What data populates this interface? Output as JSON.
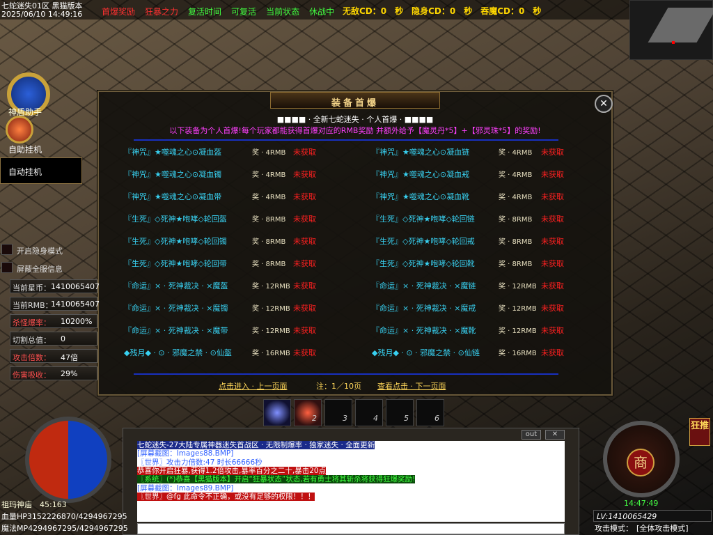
{
  "header": {
    "title": "七蛇迷失01区 黑猫版本",
    "datetime": "2025/06/10 14:49:16",
    "menu": [
      "首爆奖励",
      "狂暴之力",
      "复活时间",
      "可复活",
      "当前状态",
      "休战中"
    ],
    "cooldowns": [
      "无敌CD：0　秒",
      "隐身CD：0　秒",
      "吞魔CD：0　秒"
    ]
  },
  "left_panel": {
    "assistant": "神盾助手",
    "auto_label": "自助挂机",
    "auto_box": "自动挂机",
    "options": [
      "开启隐身模式",
      "屏蔽全服信息"
    ],
    "stats": [
      [
        "当前星币：",
        "1410065407"
      ],
      [
        "当前RMB：",
        "1410065407"
      ],
      [
        "杀怪爆率：",
        "10200%"
      ],
      [
        "切割总值：",
        "0"
      ],
      [
        "攻击倍数：",
        "47倍"
      ],
      [
        "伤害吸收：",
        "29%"
      ]
    ]
  },
  "dialog": {
    "title": "装备首爆",
    "subtitle": "■■■■ · 全新七蛇迷失 · 个人首爆 · ■■■■",
    "description": "以下装备为个人首爆!每个玩家都能获得首爆对应的RMB奖励 并额外给予【魔灵丹*5】+【邪灵珠*5】的奖励!",
    "rows": [
      {
        "left": {
          "name": "『神咒』★噬魂之心⊙凝血盔",
          "reward": "奖 · 4RMB",
          "status": "未获取"
        },
        "right": {
          "name": "『神咒』★噬魂之心⊙凝血链",
          "reward": "奖 · 4RMB",
          "status": "未获取"
        }
      },
      {
        "left": {
          "name": "『神咒』★噬魂之心⊙凝血镯",
          "reward": "奖 · 4RMB",
          "status": "未获取"
        },
        "right": {
          "name": "『神咒』★噬魂之心⊙凝血戒",
          "reward": "奖 · 4RMB",
          "status": "未获取"
        }
      },
      {
        "left": {
          "name": "『神咒』★噬魂之心⊙凝血带",
          "reward": "奖 · 4RMB",
          "status": "未获取"
        },
        "right": {
          "name": "『神咒』★噬魂之心⊙凝血靴",
          "reward": "奖 · 4RMB",
          "status": "未获取"
        }
      },
      {
        "left": {
          "name": "『生死』◇死神★咆哮◇轮回盔",
          "reward": "奖 · 8RMB",
          "status": "未获取"
        },
        "right": {
          "name": "『生死』◇死神★咆哮◇轮回链",
          "reward": "奖 · 8RMB",
          "status": "未获取"
        }
      },
      {
        "left": {
          "name": "『生死』◇死神★咆哮◇轮回镯",
          "reward": "奖 · 8RMB",
          "status": "未获取"
        },
        "right": {
          "name": "『生死』◇死神★咆哮◇轮回戒",
          "reward": "奖 · 8RMB",
          "status": "未获取"
        }
      },
      {
        "left": {
          "name": "『生死』◇死神★咆哮◇轮回带",
          "reward": "奖 · 8RMB",
          "status": "未获取"
        },
        "right": {
          "name": "『生死』◇死神★咆哮◇轮回靴",
          "reward": "奖 · 8RMB",
          "status": "未获取"
        }
      },
      {
        "left": {
          "name": "『命运』× · 死神裁决 · ×魔盔",
          "reward": "奖 · 12RMB",
          "status": "未获取"
        },
        "right": {
          "name": "『命运』× · 死神裁决 · ×魔链",
          "reward": "奖 · 12RMB",
          "status": "未获取"
        }
      },
      {
        "left": {
          "name": "『命运』× · 死神裁决 · ×魔镯",
          "reward": "奖 · 12RMB",
          "status": "未获取"
        },
        "right": {
          "name": "『命运』× · 死神裁决 · ×魔戒",
          "reward": "奖 · 12RMB",
          "status": "未获取"
        }
      },
      {
        "left": {
          "name": "『命运』× · 死神裁决 · ×魔带",
          "reward": "奖 · 12RMB",
          "status": "未获取"
        },
        "right": {
          "name": "『命运』× · 死神裁决 · ×魔靴",
          "reward": "奖 · 12RMB",
          "status": "未获取"
        }
      },
      {
        "left": {
          "name": "◆残月◆ · ⊙ · 邪魔之禁 · ⊙仙盔",
          "reward": "奖 · 16RMB",
          "status": "未获取"
        },
        "right": {
          "name": "◆残月◆ · ⊙ · 邪魔之禁 · ⊙仙链",
          "reward": "奖 · 16RMB",
          "status": "未获取"
        }
      }
    ],
    "prev": "点击进入 · 上一页面",
    "page": "注：1／10页",
    "next": "查看点击 · 下一页面"
  },
  "skill_bar": [
    "2",
    "3",
    "4",
    "5",
    "6"
  ],
  "chat": {
    "out": "out",
    "lines": [
      "七蛇迷失-27大陆专属神器迷失首战区 · 无限制爆率 · 独家迷失 · 全面更新",
      "[屏幕截图：Images88.BMP]",
      "〖世界〗攻击力倍数:47 时长66666秒",
      "恭喜你开启狂暴,获得1.2倍攻击,暴率百分之二十,暴击20点",
      "〖系统〗(*)恭喜【黑猫版本】开启“狂暴状态”状态,若有勇士将其斩杀将获得狂爆奖励!",
      "[屏幕截图：Images89.BMP]",
      "〖世界〗@fg 此命令不正确，或没有足够的权限！！！"
    ]
  },
  "status": {
    "map": "祖玛神庙　45:163",
    "hp": "血量HP3152226870/4294967295",
    "mp": "魔法MP4294967295/4294967295",
    "shop": "商",
    "promo": "狂推",
    "time": "14:47:49",
    "level": "LV:1410065429",
    "attack_label": "攻击模式：",
    "attack_mode": "[全体攻击模式]"
  }
}
